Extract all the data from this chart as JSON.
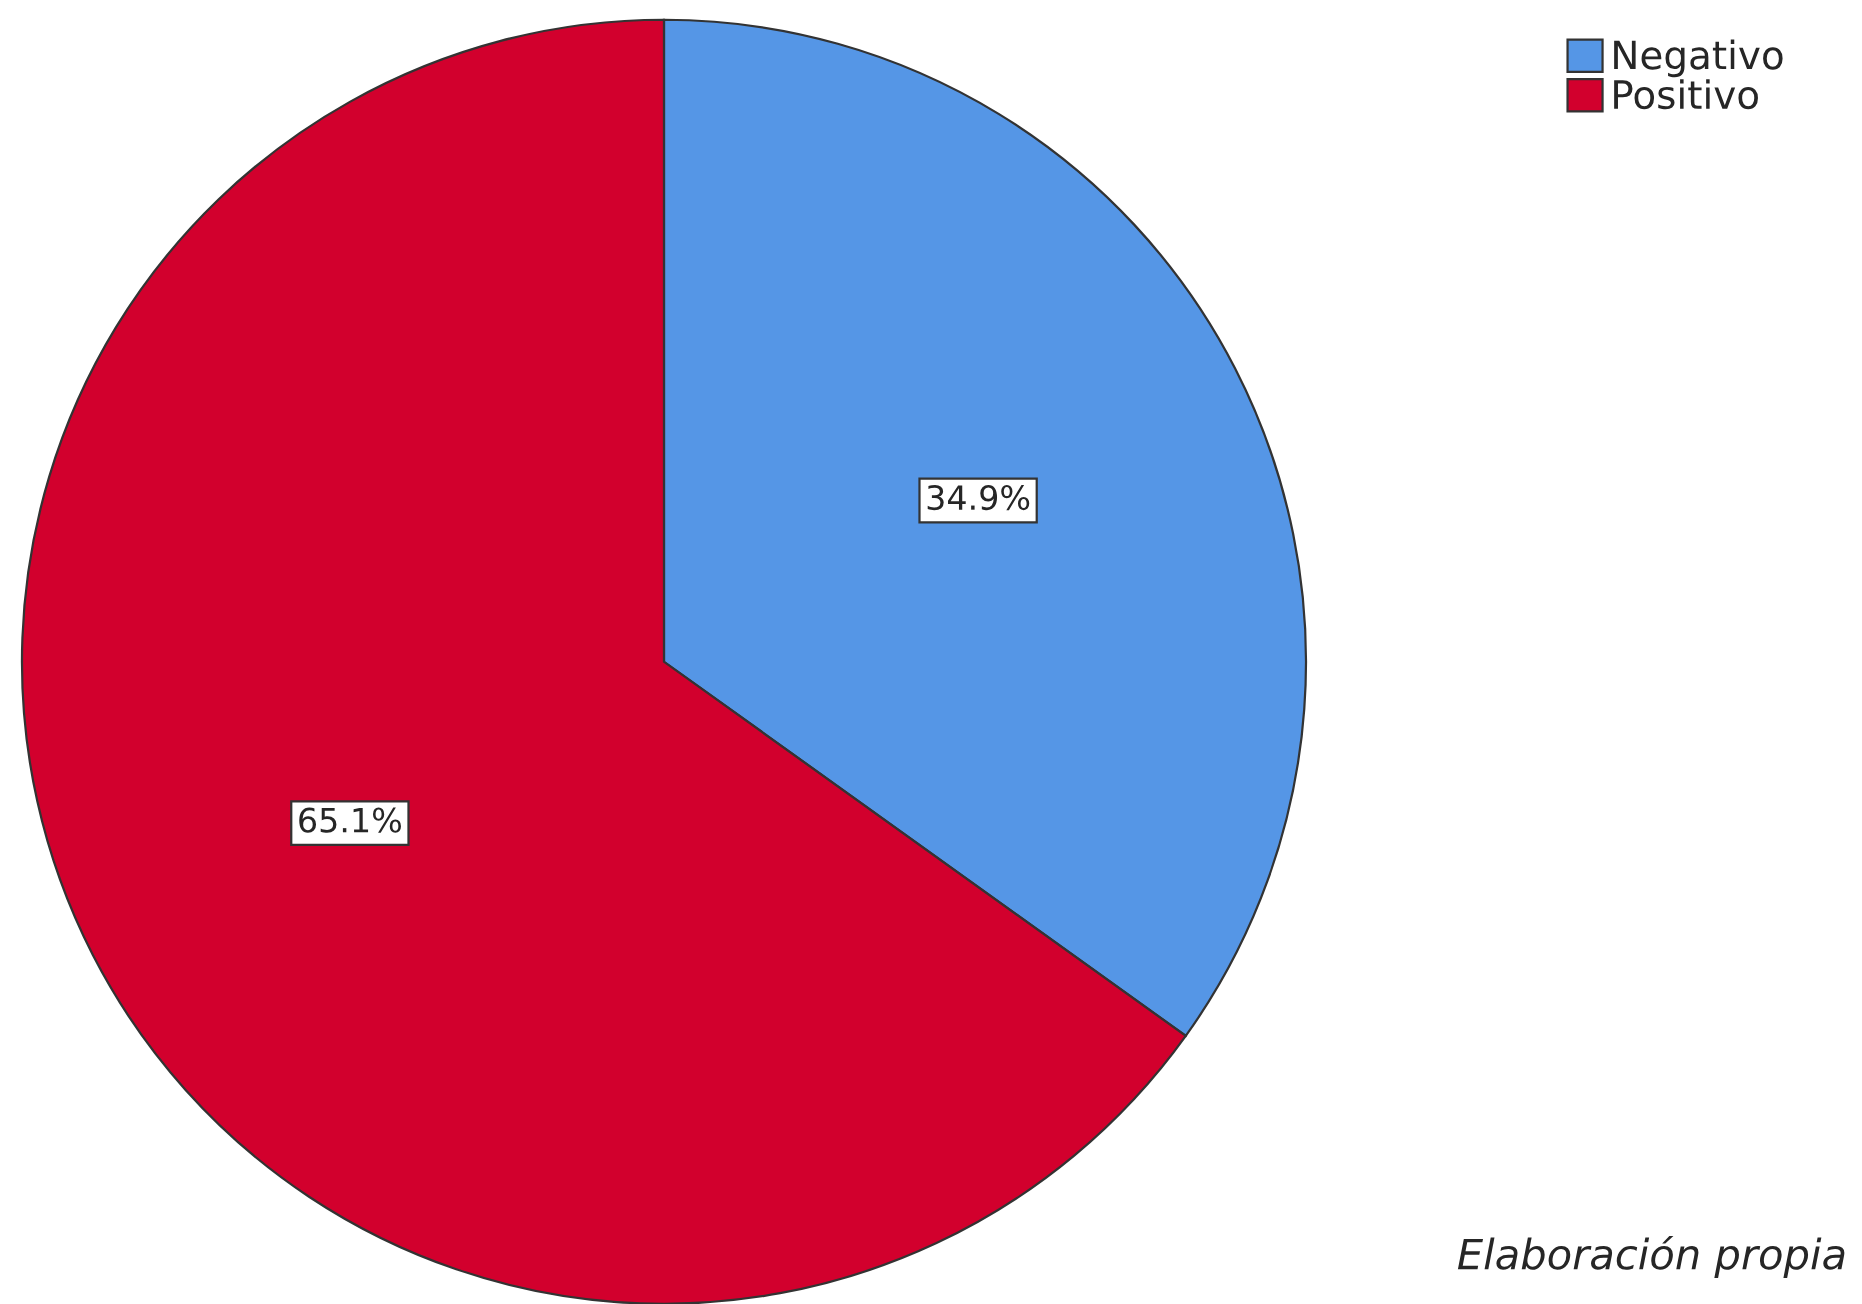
{
  "chart_data": {
    "type": "pie",
    "categories": [
      "Negativo",
      "Positivo"
    ],
    "values": [
      34.9,
      65.1
    ],
    "colors": [
      "#5596e6",
      "#d2002d"
    ],
    "value_labels": [
      "34.9%",
      "65.1%"
    ],
    "legend": "top right",
    "annotations": [
      "Elaboración propia"
    ]
  }
}
